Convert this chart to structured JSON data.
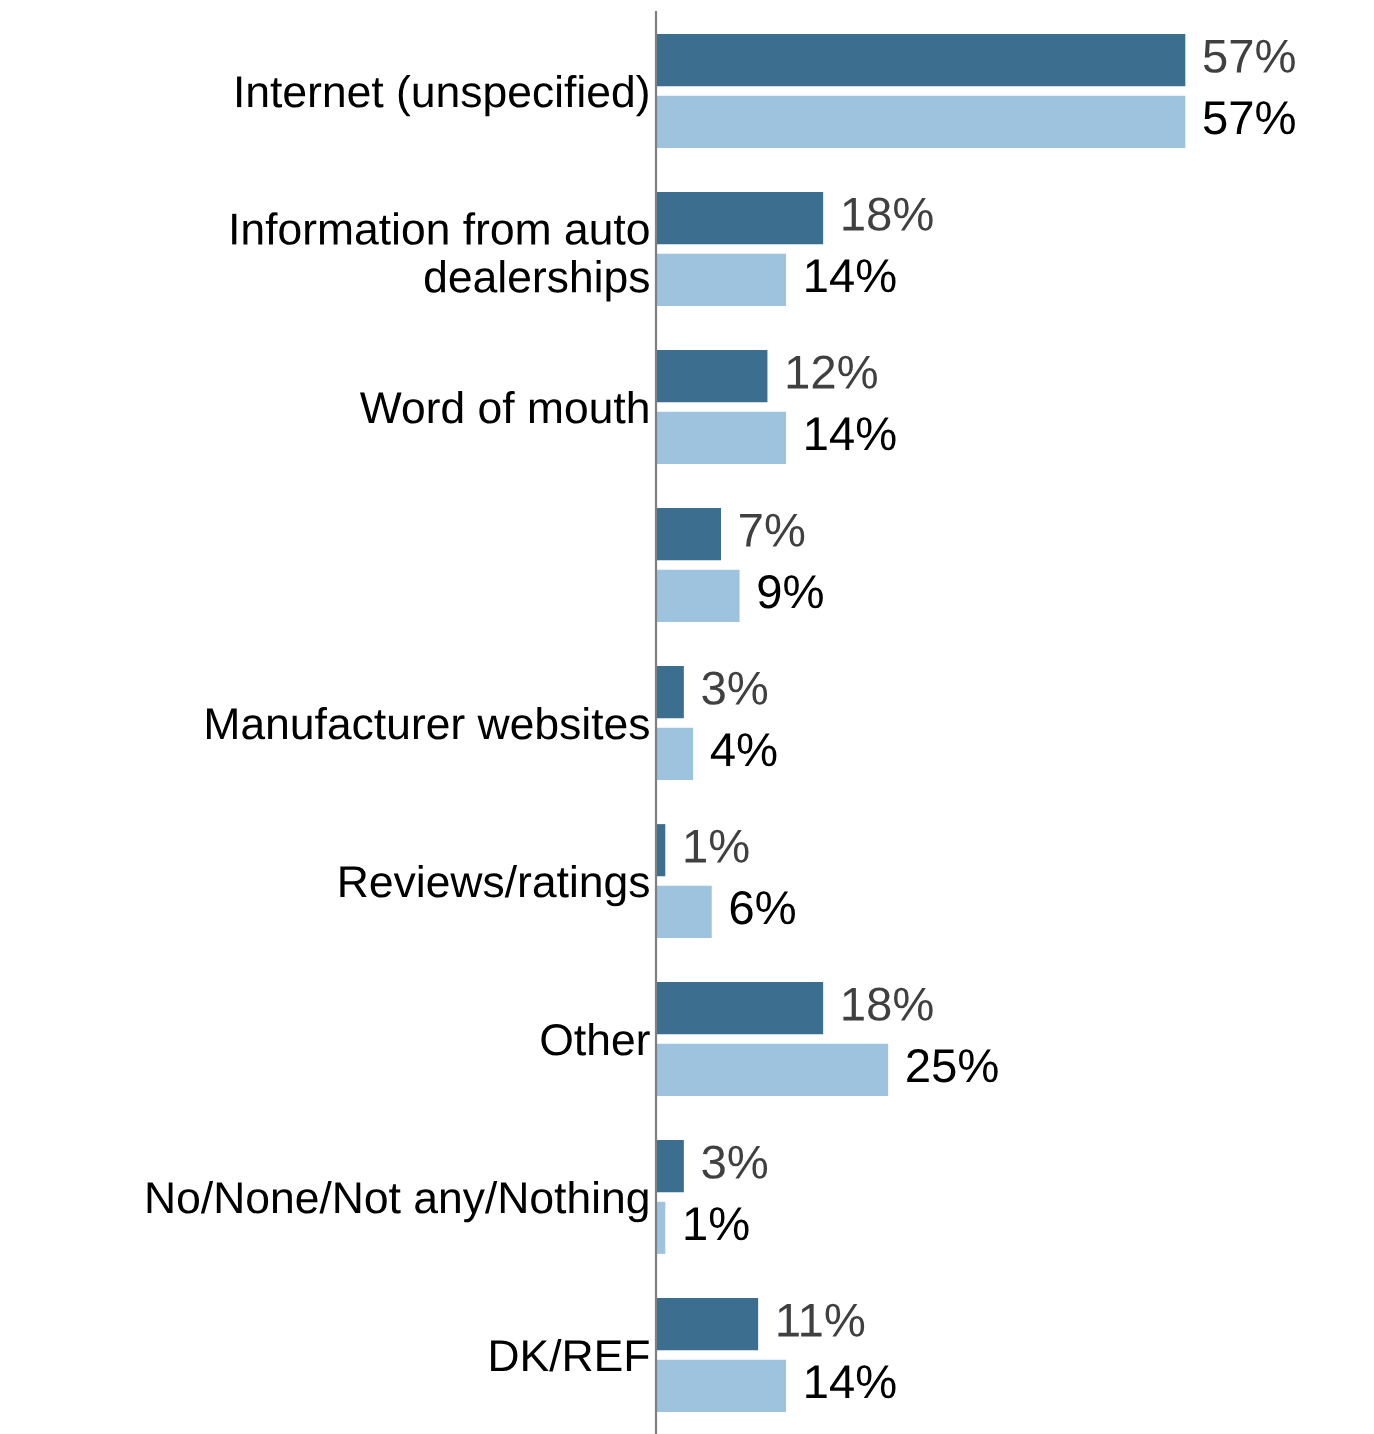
{
  "chart_data": {
    "type": "bar",
    "orientation": "horizontal",
    "categories": [
      "Internet (unspecified)",
      "Information from auto\ndealerships",
      "Word of mouth",
      null,
      "Manufacturer websites",
      "Reviews/ratings",
      "Other",
      "No/None/Not any/Nothing",
      "DK/REF"
    ],
    "series": [
      {
        "color": "#3b6e8f",
        "values": [
          57,
          18,
          12,
          7,
          3,
          1,
          18,
          3,
          11
        ],
        "value_labels": [
          "57%",
          "18%",
          "12%",
          "7%",
          "3%",
          "1%",
          "18%",
          "3%",
          "11%"
        ]
      },
      {
        "color": "#9dc3df",
        "values": [
          57,
          14,
          14,
          9,
          4,
          6,
          25,
          1,
          14
        ],
        "value_labels": [
          "57%",
          "14%",
          "14%",
          "9%",
          "4%",
          "6%",
          "25%",
          "1%",
          "14%"
        ]
      }
    ],
    "tick_labels": "y",
    "grid": false,
    "legend": false
  }
}
